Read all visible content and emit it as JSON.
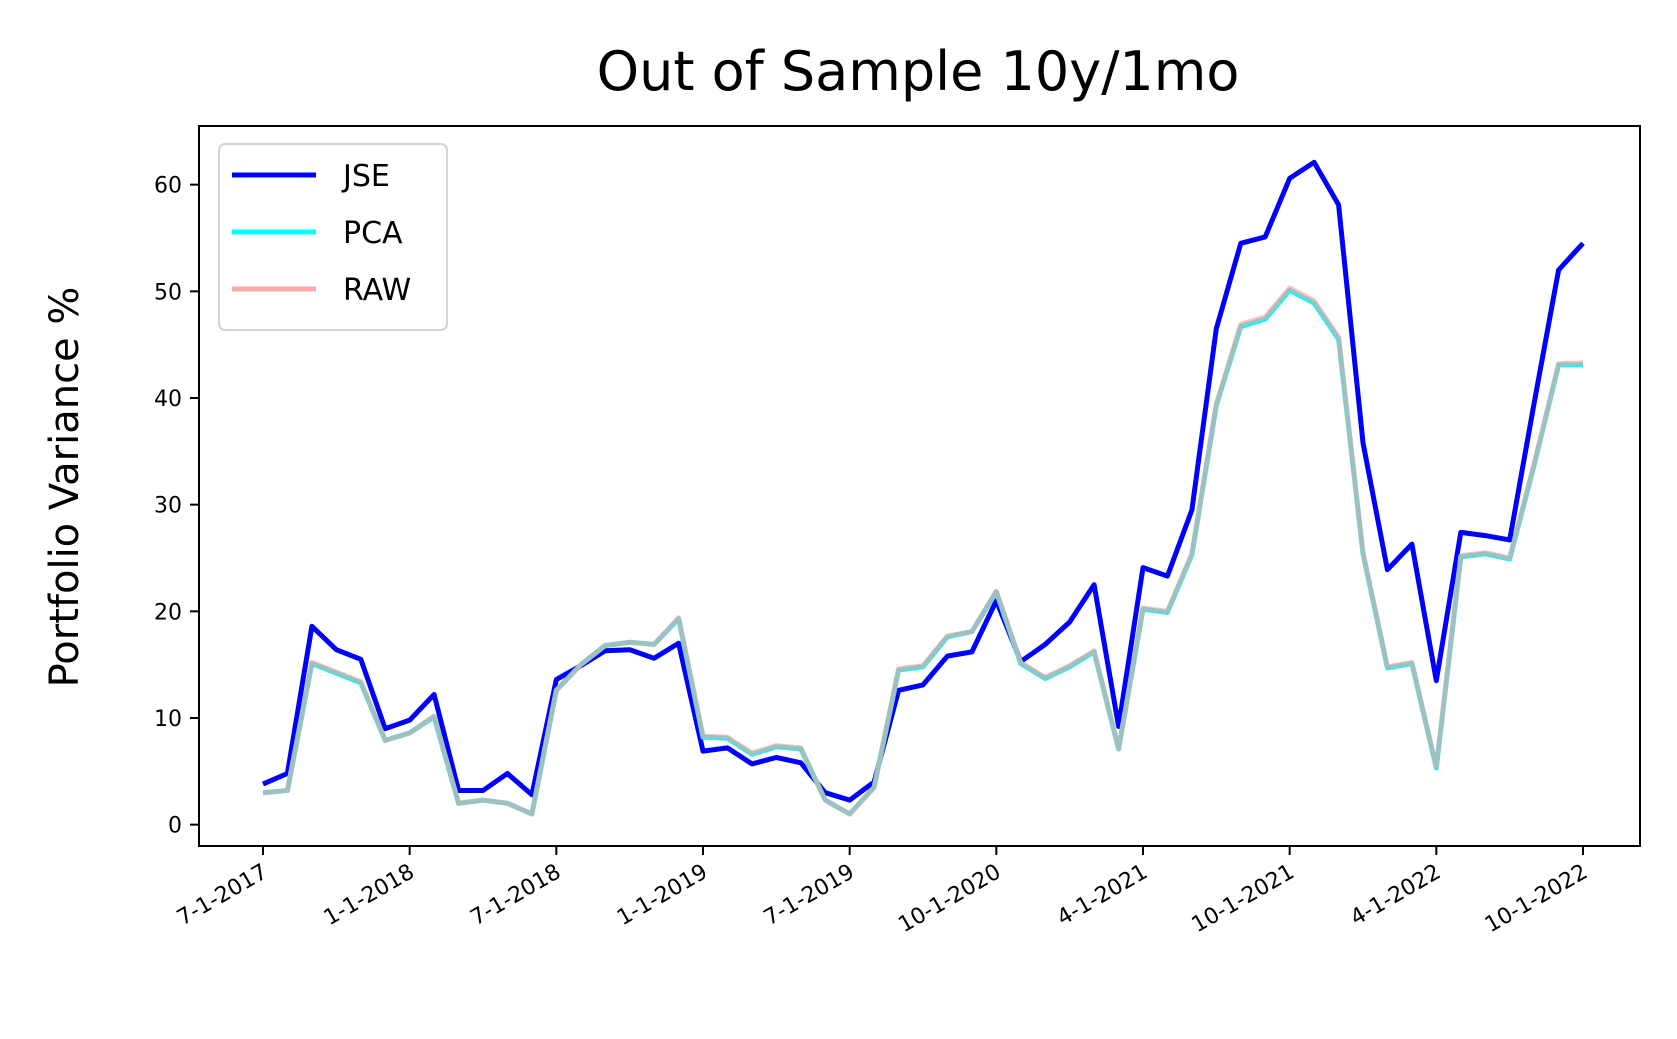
{
  "chart_data": {
    "type": "line",
    "title": "Out of Sample 10y/1mo",
    "xlabel": "",
    "ylabel": "Portfolio Variance %",
    "ylim": [
      -2,
      65.5
    ],
    "yticks": [
      0,
      10,
      20,
      30,
      40,
      50,
      60
    ],
    "grid": false,
    "legend": "top-left",
    "xtick_labels": [
      "7-1-2017",
      "1-1-2018",
      "7-1-2018",
      "1-1-2019",
      "7-1-2019",
      "10-1-2020",
      "4-1-2021",
      "10-1-2021",
      "4-1-2022",
      "10-1-2022"
    ],
    "xtick_positions": [
      0,
      6,
      12,
      18,
      24,
      30,
      36,
      42,
      48,
      54
    ],
    "x": [
      0,
      1,
      2,
      3,
      4,
      5,
      6,
      7,
      8,
      9,
      10,
      11,
      12,
      13,
      14,
      15,
      16,
      17,
      18,
      19,
      20,
      21,
      22,
      23,
      24,
      25,
      26,
      27,
      28,
      29,
      30,
      31,
      32,
      33,
      34,
      35,
      36,
      37,
      38,
      39,
      40,
      41,
      42,
      43,
      44,
      45,
      46,
      47,
      48,
      49,
      50,
      51,
      52,
      53,
      54
    ],
    "series": [
      {
        "name": "JSE",
        "color": "#0000ff",
        "values": [
          3.8,
          4.8,
          18.6,
          16.4,
          15.5,
          9.0,
          9.8,
          12.2,
          3.2,
          3.2,
          4.8,
          2.8,
          13.6,
          14.9,
          16.3,
          16.4,
          15.6,
          17.0,
          6.9,
          7.2,
          5.7,
          6.3,
          5.8,
          3.0,
          2.3,
          4.0,
          12.6,
          13.1,
          15.8,
          16.2,
          21.0,
          15.3,
          16.9,
          19.0,
          22.5,
          9.2,
          24.1,
          23.3,
          29.5,
          46.5,
          54.5,
          55.1,
          60.6,
          62.1,
          58.1,
          35.8,
          23.9,
          26.3,
          13.5,
          27.4,
          27.1,
          26.7,
          39.5,
          52.0,
          54.5
        ]
      },
      {
        "name": "PCA",
        "color": "#00ffff",
        "values": [
          3.0,
          3.2,
          15.1,
          14.2,
          13.3,
          7.9,
          8.6,
          10.1,
          2.0,
          2.3,
          2.0,
          1.0,
          12.6,
          15.0,
          16.8,
          17.1,
          16.9,
          19.3,
          8.2,
          8.1,
          6.6,
          7.3,
          7.1,
          2.3,
          1.0,
          3.5,
          14.5,
          14.8,
          17.6,
          18.1,
          21.8,
          15.1,
          13.7,
          14.8,
          16.2,
          7.1,
          20.2,
          19.9,
          25.3,
          39.3,
          46.7,
          47.4,
          50.1,
          48.9,
          45.5,
          25.4,
          14.7,
          15.1,
          5.3,
          25.1,
          25.4,
          24.9,
          33.7,
          43.1,
          43.1
        ]
      },
      {
        "name": "RAW",
        "color": "#ff9999",
        "values": [
          3.0,
          3.2,
          15.2,
          14.3,
          13.4,
          7.9,
          8.6,
          10.2,
          2.0,
          2.3,
          2.0,
          1.0,
          12.6,
          15.0,
          16.8,
          17.1,
          16.9,
          19.4,
          8.3,
          8.2,
          6.7,
          7.4,
          7.2,
          2.3,
          1.0,
          3.5,
          14.6,
          14.9,
          17.7,
          18.1,
          21.9,
          15.2,
          13.8,
          14.9,
          16.3,
          7.1,
          20.3,
          20.0,
          25.4,
          39.4,
          46.9,
          47.6,
          50.3,
          49.1,
          45.7,
          25.5,
          14.8,
          15.2,
          5.4,
          25.2,
          25.5,
          25.0,
          33.8,
          43.2,
          43.3
        ]
      }
    ],
    "overlap_color": "#5f9ea0"
  }
}
